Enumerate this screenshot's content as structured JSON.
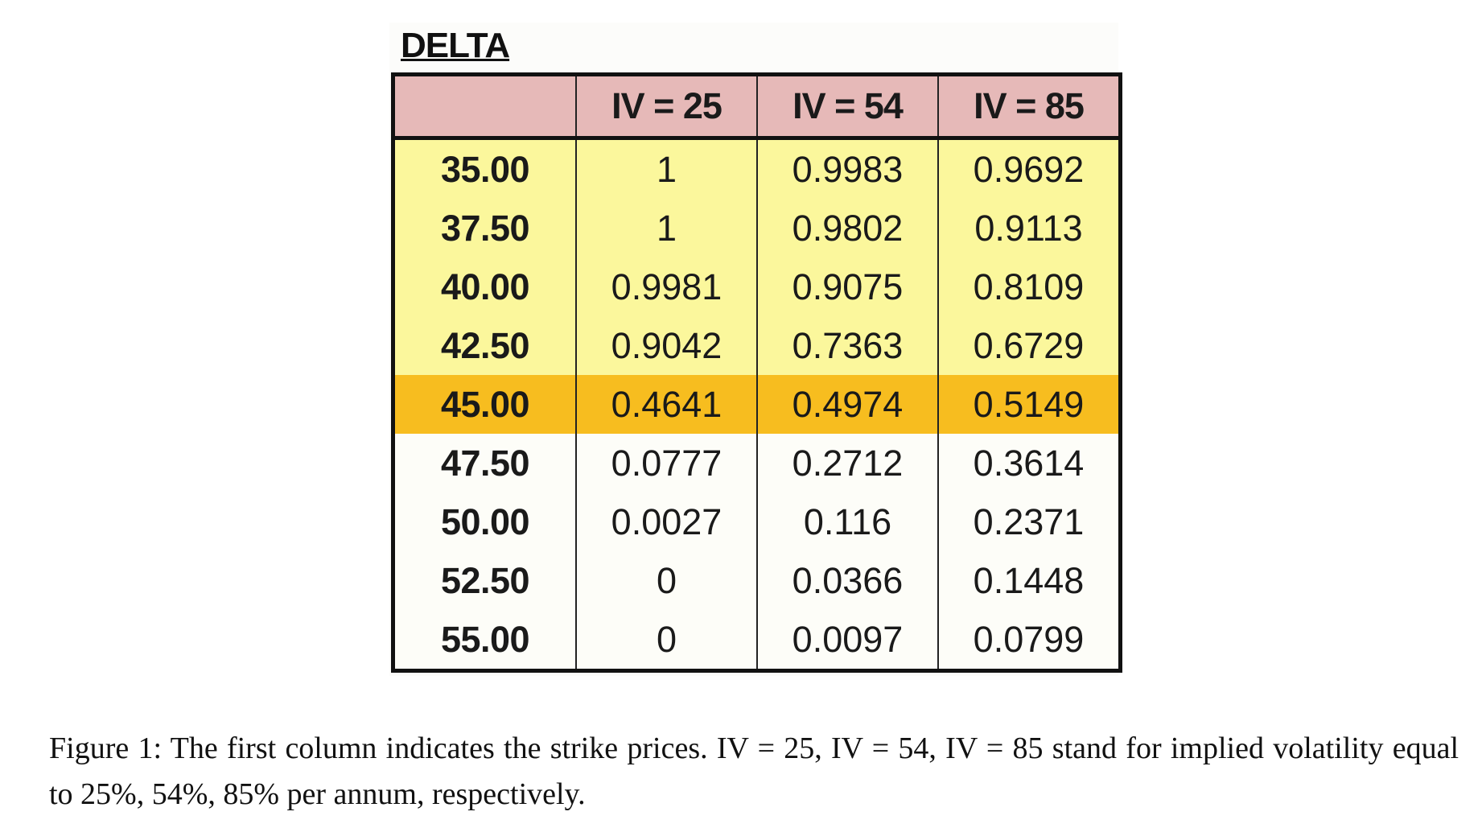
{
  "figure": {
    "table_title": "DELTA",
    "columns": [
      "",
      "IV = 25",
      "IV = 54",
      "IV = 85"
    ],
    "rows": [
      {
        "strike": "35.00",
        "values": [
          "1",
          "0.9983",
          "0.9692"
        ],
        "highlight": "yellow"
      },
      {
        "strike": "37.50",
        "values": [
          "1",
          "0.9802",
          "0.9113"
        ],
        "highlight": "yellow"
      },
      {
        "strike": "40.00",
        "values": [
          "0.9981",
          "0.9075",
          "0.8109"
        ],
        "highlight": "yellow"
      },
      {
        "strike": "42.50",
        "values": [
          "0.9042",
          "0.7363",
          "0.6729"
        ],
        "highlight": "yellow"
      },
      {
        "strike": "45.00",
        "values": [
          "0.4641",
          "0.4974",
          "0.5149"
        ],
        "highlight": "orange"
      },
      {
        "strike": "47.50",
        "values": [
          "0.0777",
          "0.2712",
          "0.3614"
        ],
        "highlight": "none"
      },
      {
        "strike": "50.00",
        "values": [
          "0.0027",
          "0.116",
          "0.2371"
        ],
        "highlight": "none"
      },
      {
        "strike": "52.50",
        "values": [
          "0",
          "0.0366",
          "0.1448"
        ],
        "highlight": "none"
      },
      {
        "strike": "55.00",
        "values": [
          "0",
          "0.0097",
          "0.0799"
        ],
        "highlight": "none"
      }
    ],
    "colors": {
      "header": "#e6b9b8",
      "yellow": "#fbf79c",
      "orange": "#f7bd1f"
    },
    "caption": "Figure 1: The first column indicates the strike prices. IV = 25, IV = 54, IV = 85 stand for implied volatility equal to 25%, 54%, 85% per annum, respectively."
  }
}
